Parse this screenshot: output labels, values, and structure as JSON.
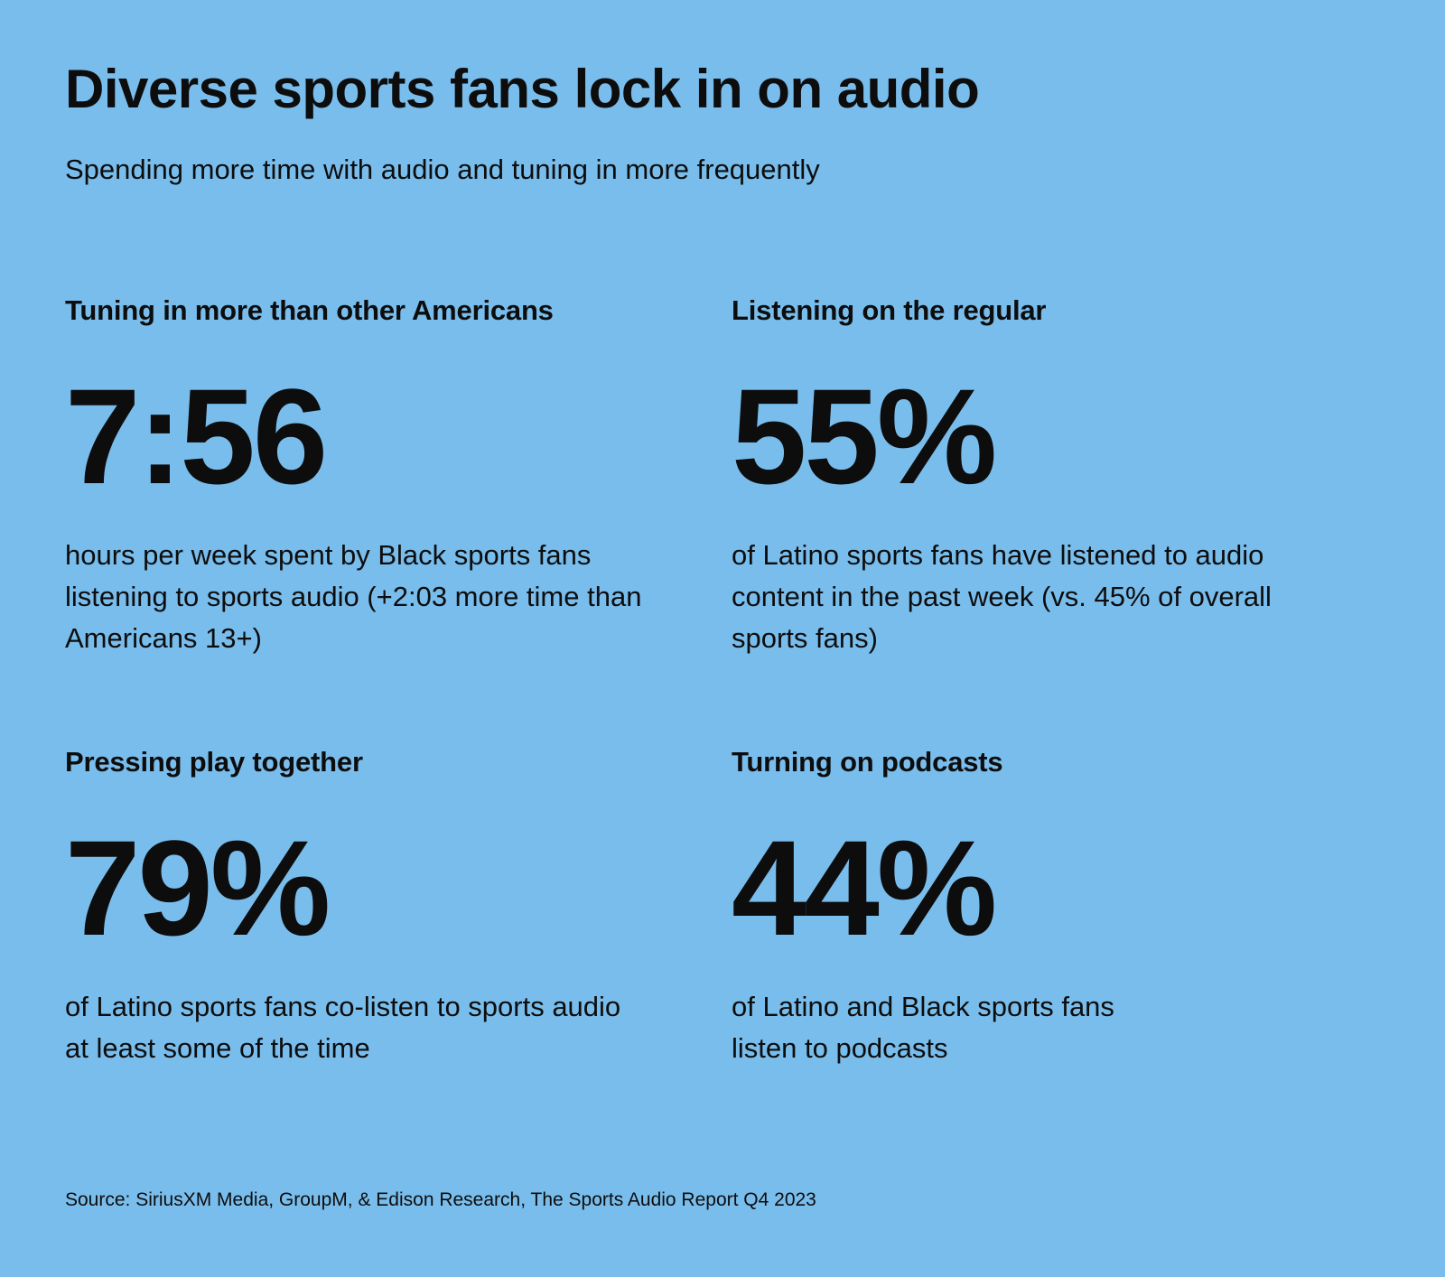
{
  "page": {
    "title": "Diverse sports fans lock in on audio",
    "subtitle": "Spending more time with audio and tuning in more frequently",
    "source": "Source: SiriusXM Media, GroupM, & Edison Research, The Sports Audio Report Q4 2023",
    "background_color": "#79bdec",
    "text_color": "#0d0d0d"
  },
  "stats": [
    {
      "heading": "Tuning in more than other Americans",
      "value": "7:56",
      "description": "hours per week spent by Black sports fans listening to sports audio (+2:03 more time than Americans 13+)"
    },
    {
      "heading": "Listening on the regular",
      "value": "55%",
      "description": "of Latino sports fans have listened to audio content in the past week (vs. 45% of overall sports fans)"
    },
    {
      "heading": "Pressing play together",
      "value": "79%",
      "description": "of Latino sports fans co-listen to sports audio at least some of the time"
    },
    {
      "heading": "Turning on podcasts",
      "value": "44%",
      "description": "of Latino and Black sports fans listen to podcasts"
    }
  ],
  "chart_data": {
    "type": "table",
    "title": "Diverse sports fans lock in on audio",
    "subtitle": "Spending more time with audio and tuning in more frequently",
    "columns": [
      "stat_label",
      "value",
      "description"
    ],
    "rows": [
      [
        "Tuning in more than other Americans",
        "7:56",
        "hours per week spent by Black sports fans listening to sports audio (+2:03 more time than Americans 13+)"
      ],
      [
        "Listening on the regular",
        "55%",
        "of Latino sports fans have listened to audio content in the past week (vs. 45% of overall sports fans)"
      ],
      [
        "Pressing play together",
        "79%",
        "of Latino sports fans co-listen to sports audio at least some of the time"
      ],
      [
        "Turning on podcasts",
        "44%",
        "of Latino and Black sports fans listen to podcasts"
      ]
    ],
    "value_units": {
      "Tuning in more than other Americans": "hours:minutes per week",
      "Listening on the regular": "percent",
      "Pressing play together": "percent",
      "Turning on podcasts": "percent"
    },
    "source": "Source: SiriusXM Media, GroupM, & Edison Research, The Sports Audio Report Q4 2023"
  }
}
